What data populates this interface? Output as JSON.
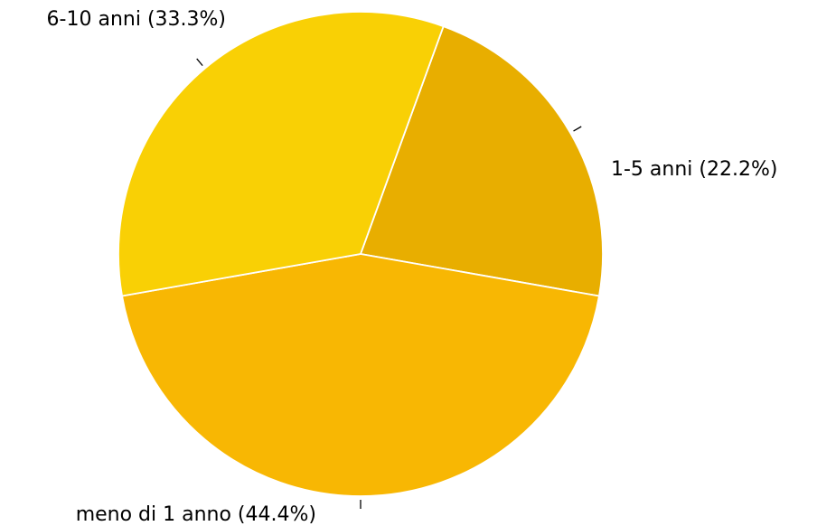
{
  "chart_data": {
    "type": "pie",
    "title": "",
    "categories": [
      "1-5 anni",
      "meno di 1 anno",
      "6-10 anni"
    ],
    "values": [
      22.2,
      44.4,
      33.3
    ],
    "labels": [
      "1-5 anni (22.2%)",
      "meno di 1 anno (44.4%)",
      "6-10 anni (33.3%)"
    ],
    "colors": [
      "#E8AE00",
      "#F8B703",
      "#F9D005"
    ],
    "start_angle_deg": -70,
    "direction": "clockwise",
    "legend": "none",
    "label_position": "outside"
  }
}
